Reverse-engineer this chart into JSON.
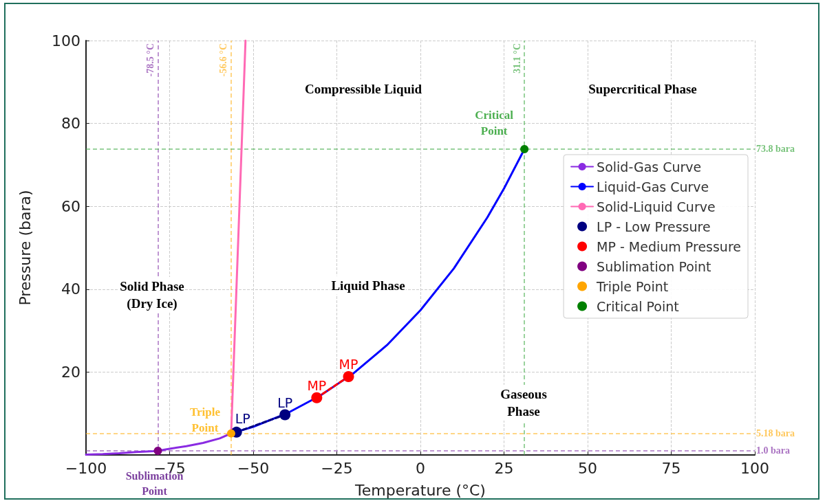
{
  "chart_data": {
    "type": "line",
    "xlabel": "Temperature (°C)",
    "ylabel": "Pressure (bara)",
    "xlim": [
      -100,
      100
    ],
    "xticks": [
      -100,
      -75,
      -50,
      -25,
      0,
      25,
      50,
      75,
      100
    ],
    "ylim": [
      0,
      100
    ],
    "yticks": [
      20,
      40,
      60,
      80,
      100
    ],
    "grid": true,
    "legend": "right",
    "series": [
      {
        "name": "Solid-Gas Curve",
        "marker": "none",
        "color": "#8a2be2",
        "x": [
          -100,
          -95,
          -90,
          -85,
          -80,
          -78.5,
          -75,
          -70,
          -65,
          -60,
          -56.6
        ],
        "values": [
          0.1,
          0.2,
          0.4,
          0.7,
          0.9,
          1.0,
          1.5,
          2.1,
          2.9,
          4.0,
          5.2
        ]
      },
      {
        "name": "Liquid-Gas Curve",
        "marker": "none",
        "color": "#0000ff",
        "x": [
          -56.6,
          -50,
          -40,
          -30,
          -20,
          -10,
          0,
          10,
          20,
          25,
          31.1
        ],
        "values": [
          5.2,
          6.8,
          10,
          14.3,
          19.7,
          26.5,
          34.9,
          45,
          57.3,
          64.3,
          73.8
        ]
      },
      {
        "name": "Solid-Liquid Curve",
        "marker": "none",
        "color": "#ff69b4",
        "x": [
          -56.6,
          -52.3
        ],
        "values": [
          5.2,
          100
        ]
      },
      {
        "marker": "none",
        "line_style": "dashed",
        "color": "#000080",
        "x": [
          -55,
          -40.5
        ],
        "values": [
          5.5,
          9.7
        ]
      },
      {
        "marker": "none",
        "line_style": "dashed",
        "color": "#ff0000",
        "x": [
          -31,
          -21.5
        ],
        "values": [
          13.8,
          18.9
        ]
      },
      {
        "name": "LP - Low Pressure",
        "type": "scatter",
        "marker": "circle",
        "color": "#000080",
        "x": [
          -55,
          -40.5
        ],
        "values": [
          5.5,
          9.7
        ]
      },
      {
        "name": "MP - Medium Pressure",
        "type": "scatter",
        "marker": "circle",
        "color": "#ff0000",
        "x": [
          -31,
          -21.5
        ],
        "values": [
          13.8,
          18.9
        ]
      },
      {
        "name": "Sublimation Point",
        "type": "scatter",
        "marker": "circle",
        "color": "#800080",
        "x": [
          -78.5
        ],
        "values": [
          1.0
        ]
      },
      {
        "name": "Triple Point",
        "type": "scatter",
        "marker": "circle",
        "color": "#ffa500",
        "x": [
          -56.6
        ],
        "values": [
          5.2
        ]
      },
      {
        "name": "Critical Point",
        "type": "scatter",
        "marker": "circle",
        "color": "#008000",
        "x": [
          31.1
        ],
        "values": [
          73.8
        ]
      }
    ],
    "ref_lines": [
      {
        "axis": "x",
        "value": -78.5,
        "label": "-78.5 °C",
        "color": "#8e44ad",
        "line_style": "dashed"
      },
      {
        "axis": "x",
        "value": -56.6,
        "label": "-56.6 °C",
        "color": "#ffb627",
        "line_style": "dashed"
      },
      {
        "axis": "x",
        "value": 31.1,
        "label": "31.1 °C",
        "color": "#4caf50",
        "line_style": "dashed"
      },
      {
        "axis": "y",
        "value": 73.8,
        "label": "73.8 bara",
        "color": "#4caf50",
        "line_style": "dashed"
      },
      {
        "axis": "y",
        "value": 5.18,
        "label": "5.18 bara",
        "color": "#ffb627",
        "line_style": "dashed"
      },
      {
        "axis": "y",
        "value": 1.0,
        "label": "1.0 bara",
        "color": "#8e44ad",
        "line_style": "dashed"
      }
    ],
    "annotations": [
      "Compressible Liquid",
      "Supercritical Phase",
      "Solid Phase\n(Dry Ice)",
      "Liquid Phase",
      "Gaseous Phase",
      {
        "text": "Critical Point",
        "x": 31.1,
        "y": 73.8
      },
      {
        "text": "Triple Point",
        "x": -56.6,
        "y": 5.2
      },
      {
        "text": "Sublimation Point",
        "x": -78.5,
        "y": 1.0
      },
      {
        "text": "LP",
        "x": -55,
        "y": 5.5
      },
      {
        "text": "LP",
        "x": -40.5,
        "y": 9.7
      },
      {
        "text": "MP",
        "x": -31,
        "y": 13.8
      },
      {
        "text": "MP",
        "x": -21.5,
        "y": 18.9
      }
    ]
  }
}
